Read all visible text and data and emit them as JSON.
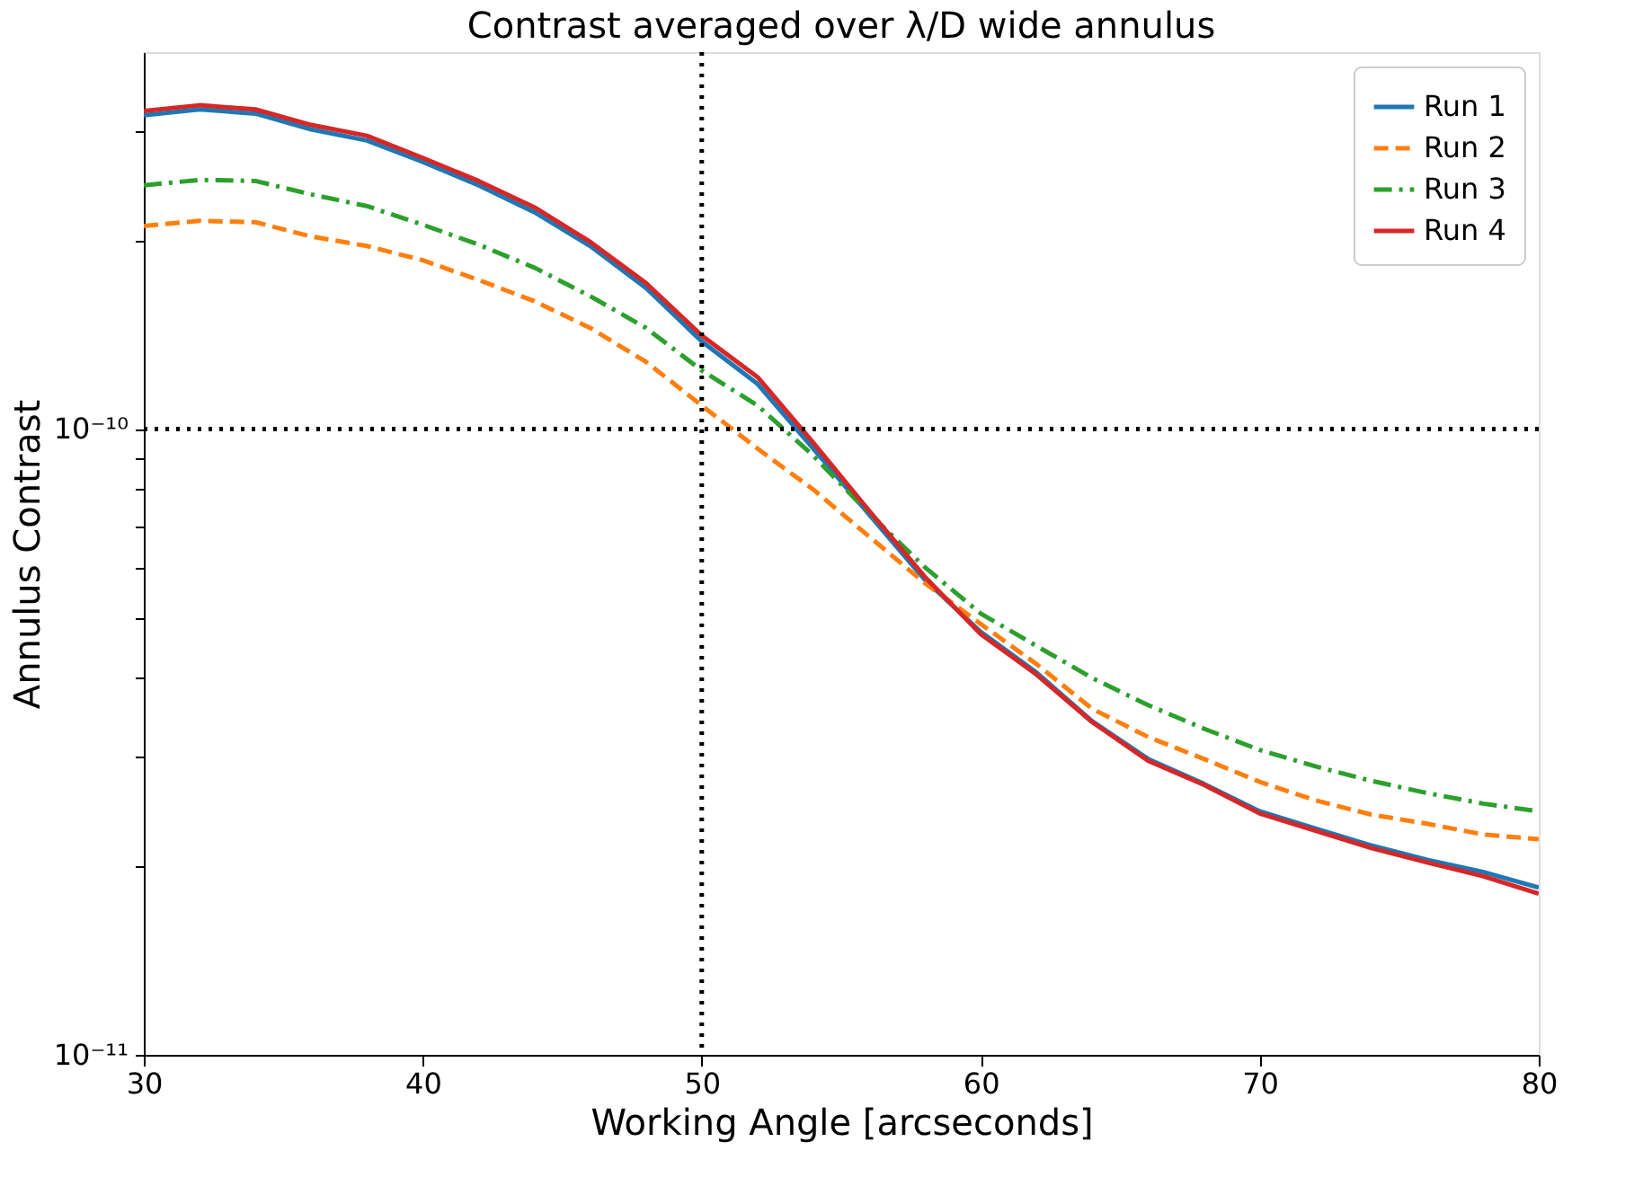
{
  "chart_data": {
    "type": "line",
    "title": "Contrast averaged over λ/D wide annulus",
    "xlabel": "Working Angle [arcseconds]",
    "ylabel": "Annulus Contrast",
    "x": [
      30,
      32,
      34,
      36,
      38,
      40,
      42,
      44,
      46,
      48,
      50,
      52,
      54,
      56,
      58,
      60,
      62,
      64,
      66,
      68,
      70,
      72,
      74,
      76,
      78,
      80
    ],
    "series": [
      {
        "name": "Run 1",
        "color": "#1f77b4",
        "line_style": "solid",
        "values": [
          3.17e-10,
          3.24e-10,
          3.19e-10,
          3.01e-10,
          2.89e-10,
          2.67e-10,
          2.45e-10,
          2.22e-10,
          1.96e-10,
          1.68e-10,
          1.38e-10,
          1.18e-10,
          9.3e-11,
          7.3e-11,
          5.74e-11,
          4.74e-11,
          4.08e-11,
          3.41e-11,
          2.97e-11,
          2.71e-11,
          2.45e-11,
          2.3e-11,
          2.16e-11,
          2.05e-11,
          1.96e-11,
          1.85e-11
        ]
      },
      {
        "name": "Run 2",
        "color": "#ff7f0e",
        "line_style": "dashed",
        "values": [
          2.11e-10,
          2.15e-10,
          2.14e-10,
          2.03e-10,
          1.96e-10,
          1.86e-10,
          1.73e-10,
          1.6e-10,
          1.45e-10,
          1.28e-10,
          1.09e-10,
          9.3e-11,
          8e-11,
          6.73e-11,
          5.67e-11,
          4.88e-11,
          4.21e-11,
          3.57e-11,
          3.22e-11,
          2.97e-11,
          2.73e-11,
          2.55e-11,
          2.42e-11,
          2.34e-11,
          2.25e-11,
          2.21e-11
        ]
      },
      {
        "name": "Run 3",
        "color": "#2ca02c",
        "line_style": "dashdot",
        "values": [
          2.45e-10,
          2.5e-10,
          2.49e-10,
          2.37e-10,
          2.27e-10,
          2.12e-10,
          1.97e-10,
          1.81e-10,
          1.63e-10,
          1.45e-10,
          1.24e-10,
          1.09e-10,
          9.06e-11,
          7.33e-11,
          6.01e-11,
          5.07e-11,
          4.5e-11,
          4e-11,
          3.62e-11,
          3.32e-11,
          3.07e-11,
          2.89e-11,
          2.74e-11,
          2.62e-11,
          2.52e-11,
          2.45e-11
        ]
      },
      {
        "name": "Run 4",
        "color": "#d62728",
        "line_style": "solid",
        "values": [
          3.22e-10,
          3.29e-10,
          3.24e-10,
          3.06e-10,
          2.94e-10,
          2.71e-10,
          2.49e-10,
          2.26e-10,
          1.99e-10,
          1.71e-10,
          1.41e-10,
          1.21e-10,
          9.5e-11,
          7.4e-11,
          5.8e-11,
          4.7e-11,
          4.05e-11,
          3.4e-11,
          2.95e-11,
          2.7e-11,
          2.43e-11,
          2.28e-11,
          2.14e-11,
          2.03e-11,
          1.93e-11,
          1.81e-11
        ]
      }
    ],
    "xlim": [
      30,
      80
    ],
    "xticks": [
      30,
      40,
      50,
      60,
      70,
      80
    ],
    "ylim": [
      1e-11,
      4e-10
    ],
    "log": true,
    "yticks": [
      {
        "value": 1e-11,
        "label": "10⁻¹¹"
      },
      {
        "value": 2e-11,
        "label": null
      },
      {
        "value": 3e-11,
        "label": null
      },
      {
        "value": 4e-11,
        "label": null
      },
      {
        "value": 5e-11,
        "label": null
      },
      {
        "value": 6e-11,
        "label": null
      },
      {
        "value": 7e-11,
        "label": null
      },
      {
        "value": 8e-11,
        "label": null
      },
      {
        "value": 9e-11,
        "label": null
      },
      {
        "value": 1e-10,
        "label": "10⁻¹⁰"
      },
      {
        "value": 2e-10,
        "label": null
      },
      {
        "value": 3e-10,
        "label": null
      }
    ],
    "ref_lines": [
      {
        "axis": "x",
        "value": 50,
        "color": "#000000",
        "line_style": "dotted"
      },
      {
        "axis": "y",
        "value": 1e-10,
        "color": "#000000",
        "line_style": "dotted"
      }
    ],
    "grid": false,
    "legend": "top right"
  }
}
